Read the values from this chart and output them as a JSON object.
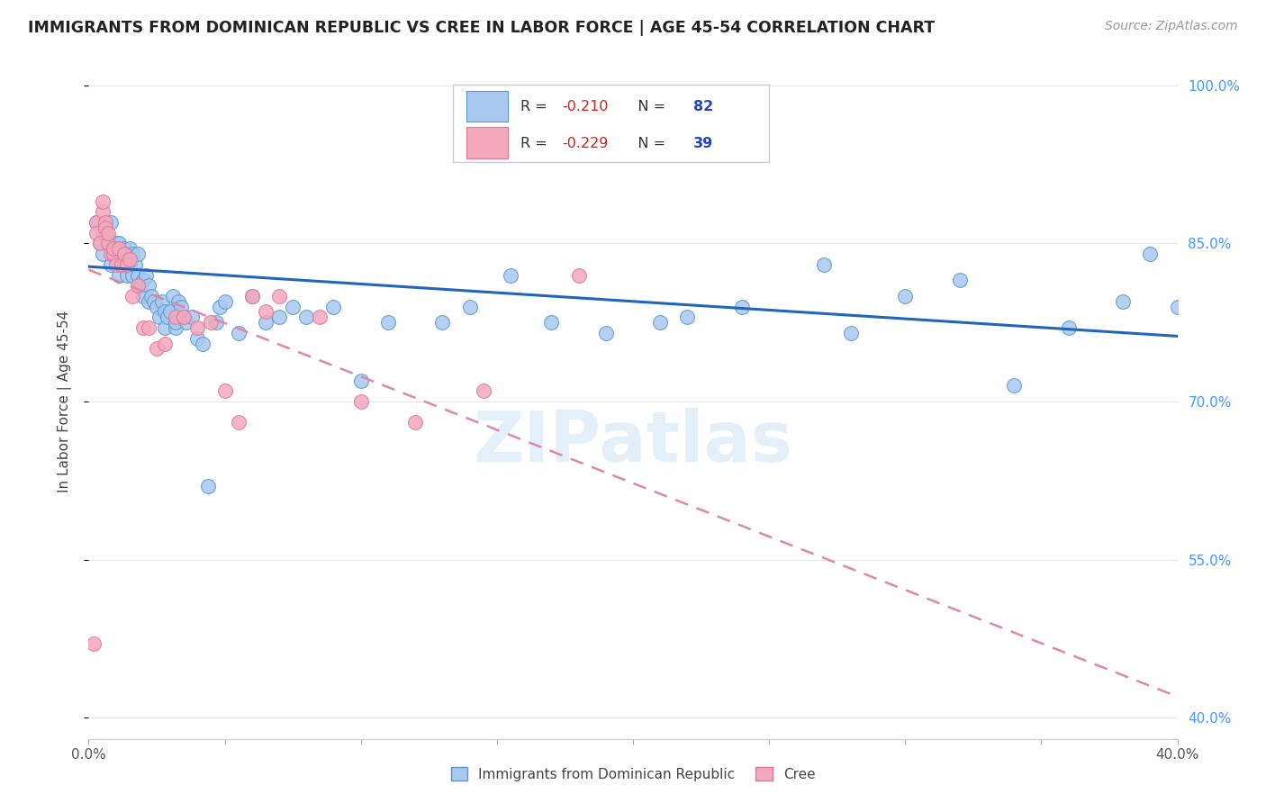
{
  "title": "IMMIGRANTS FROM DOMINICAN REPUBLIC VS CREE IN LABOR FORCE | AGE 45-54 CORRELATION CHART",
  "source": "Source: ZipAtlas.com",
  "ylabel": "In Labor Force | Age 45-54",
  "xlim": [
    0.0,
    0.4
  ],
  "ylim": [
    0.38,
    1.02
  ],
  "xticks": [
    0.0,
    0.05,
    0.1,
    0.15,
    0.2,
    0.25,
    0.3,
    0.35,
    0.4
  ],
  "yticks_right": [
    1.0,
    0.85,
    0.7,
    0.55,
    0.4
  ],
  "ytick_right_labels": [
    "100.0%",
    "85.0%",
    "70.0%",
    "55.0%",
    "40.0%"
  ],
  "blue_R": "-0.210",
  "blue_N": "82",
  "pink_R": "-0.229",
  "pink_N": "39",
  "blue_color": "#a8c8f0",
  "pink_color": "#f4a8bc",
  "blue_edge_color": "#5599cc",
  "pink_edge_color": "#dd7799",
  "blue_line_color": "#2266bb",
  "pink_line_color": "#dd88aa",
  "legend_blue_label": "Immigrants from Dominican Republic",
  "legend_pink_label": "Cree",
  "blue_scatter_x": [
    0.003,
    0.004,
    0.005,
    0.005,
    0.006,
    0.007,
    0.008,
    0.008,
    0.009,
    0.01,
    0.01,
    0.011,
    0.011,
    0.012,
    0.012,
    0.013,
    0.013,
    0.014,
    0.014,
    0.015,
    0.015,
    0.016,
    0.016,
    0.017,
    0.018,
    0.018,
    0.019,
    0.02,
    0.02,
    0.021,
    0.022,
    0.022,
    0.023,
    0.024,
    0.025,
    0.026,
    0.027,
    0.028,
    0.028,
    0.029,
    0.03,
    0.031,
    0.032,
    0.032,
    0.033,
    0.034,
    0.035,
    0.036,
    0.038,
    0.04,
    0.042,
    0.044,
    0.047,
    0.048,
    0.05,
    0.055,
    0.06,
    0.065,
    0.07,
    0.075,
    0.08,
    0.09,
    0.1,
    0.11,
    0.13,
    0.14,
    0.155,
    0.17,
    0.19,
    0.21,
    0.22,
    0.24,
    0.27,
    0.28,
    0.3,
    0.32,
    0.34,
    0.36,
    0.38,
    0.39,
    0.4
  ],
  "blue_scatter_y": [
    0.87,
    0.85,
    0.86,
    0.84,
    0.86,
    0.855,
    0.83,
    0.87,
    0.84,
    0.85,
    0.845,
    0.85,
    0.82,
    0.83,
    0.84,
    0.83,
    0.845,
    0.82,
    0.84,
    0.83,
    0.845,
    0.82,
    0.84,
    0.83,
    0.82,
    0.84,
    0.81,
    0.815,
    0.8,
    0.82,
    0.81,
    0.795,
    0.8,
    0.795,
    0.79,
    0.78,
    0.795,
    0.785,
    0.77,
    0.78,
    0.785,
    0.8,
    0.77,
    0.775,
    0.795,
    0.79,
    0.78,
    0.775,
    0.78,
    0.76,
    0.755,
    0.62,
    0.775,
    0.79,
    0.795,
    0.765,
    0.8,
    0.775,
    0.78,
    0.79,
    0.78,
    0.79,
    0.72,
    0.775,
    0.775,
    0.79,
    0.82,
    0.775,
    0.765,
    0.775,
    0.78,
    0.79,
    0.83,
    0.765,
    0.8,
    0.815,
    0.715,
    0.77,
    0.795,
    0.84,
    0.79
  ],
  "pink_scatter_x": [
    0.002,
    0.003,
    0.003,
    0.004,
    0.005,
    0.005,
    0.006,
    0.006,
    0.007,
    0.007,
    0.008,
    0.009,
    0.009,
    0.01,
    0.011,
    0.012,
    0.013,
    0.014,
    0.015,
    0.016,
    0.018,
    0.02,
    0.022,
    0.025,
    0.028,
    0.032,
    0.035,
    0.04,
    0.045,
    0.05,
    0.055,
    0.06,
    0.065,
    0.07,
    0.085,
    0.1,
    0.12,
    0.145,
    0.18
  ],
  "pink_scatter_y": [
    0.47,
    0.87,
    0.86,
    0.85,
    0.88,
    0.89,
    0.87,
    0.865,
    0.85,
    0.86,
    0.84,
    0.84,
    0.845,
    0.83,
    0.845,
    0.83,
    0.84,
    0.83,
    0.835,
    0.8,
    0.81,
    0.77,
    0.77,
    0.75,
    0.755,
    0.78,
    0.78,
    0.77,
    0.775,
    0.71,
    0.68,
    0.8,
    0.785,
    0.8,
    0.78,
    0.7,
    0.68,
    0.71,
    0.82
  ],
  "blue_trend_x": [
    0.0,
    0.4
  ],
  "blue_trend_y": [
    0.828,
    0.762
  ],
  "pink_trend_x": [
    0.0,
    0.4
  ],
  "pink_trend_y": [
    0.825,
    0.42
  ],
  "watermark": "ZIPatlas",
  "background_color": "#ffffff",
  "grid_color": "#e8e8e8"
}
